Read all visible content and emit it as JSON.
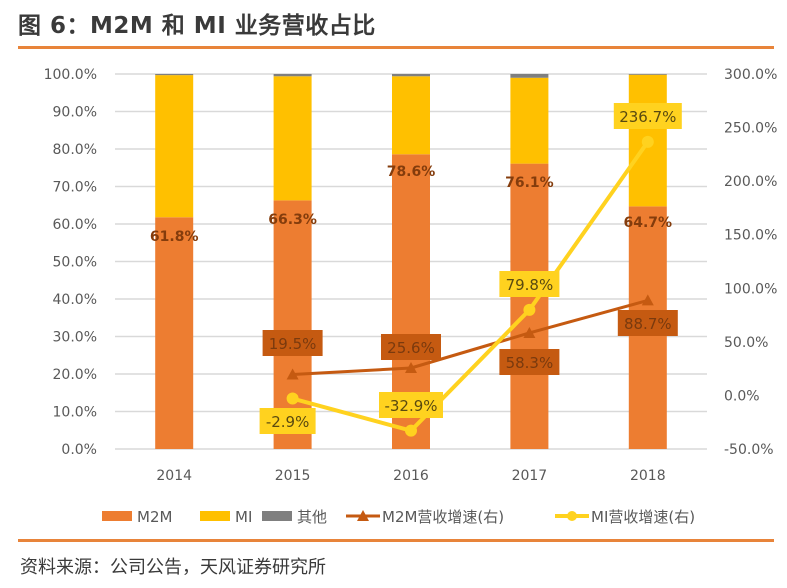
{
  "figure": {
    "title": "图 6：M2M 和 MI 业务营收占比",
    "source": "资料来源：公司公告，天风证券研究所"
  },
  "colors": {
    "m2m": "#ed7d31",
    "mi": "#ffc000",
    "other": "#7f7f7f",
    "m2m_growth": "#c55a11",
    "mi_growth": "#ffd21f",
    "m2m_bar_label": "#843c0c",
    "grid": "#d9d9d9",
    "rule": "#e8843a"
  },
  "chart_data": {
    "type": "bar",
    "subtype": "stacked-bar-with-lines-dual-axis",
    "title": "M2M 和 MI 业务营收占比",
    "categories": [
      "2014",
      "2015",
      "2016",
      "2017",
      "2018"
    ],
    "series": [
      {
        "name": "M2M",
        "kind": "bar",
        "axis": "left",
        "values": [
          61.8,
          66.3,
          78.6,
          76.1,
          64.7
        ],
        "labels": [
          "61.8%",
          "66.3%",
          "78.6%",
          "76.1%",
          "64.7%"
        ]
      },
      {
        "name": "MI",
        "kind": "bar",
        "axis": "left",
        "values": [
          37.9,
          33.1,
          20.8,
          22.9,
          35.1
        ]
      },
      {
        "name": "其他",
        "kind": "bar",
        "axis": "left",
        "values": [
          0.3,
          0.6,
          0.6,
          1.0,
          0.2
        ]
      },
      {
        "name": "M2M营收增速(右)",
        "kind": "line",
        "marker": "triangle",
        "axis": "right",
        "values": [
          null,
          19.5,
          25.6,
          58.3,
          88.7
        ],
        "labels": [
          null,
          "19.5%",
          "25.6%",
          "58.3%",
          "88.7%"
        ]
      },
      {
        "name": "MI营收增速(右)",
        "kind": "line",
        "marker": "circle",
        "axis": "right",
        "values": [
          null,
          -2.9,
          -32.9,
          79.8,
          236.7
        ],
        "labels": [
          null,
          "-2.9%",
          "-32.9%",
          "79.8%",
          "236.7%"
        ]
      }
    ],
    "left_axis": {
      "ylim": [
        0,
        100
      ],
      "ticks": [
        "0.0%",
        "10.0%",
        "20.0%",
        "30.0%",
        "40.0%",
        "50.0%",
        "60.0%",
        "70.0%",
        "80.0%",
        "90.0%",
        "100.0%"
      ],
      "tick_values": [
        0,
        10,
        20,
        30,
        40,
        50,
        60,
        70,
        80,
        90,
        100
      ]
    },
    "right_axis": {
      "ylim": [
        -50,
        300
      ],
      "ticks": [
        "-50.0%",
        "0.0%",
        "50.0%",
        "100.0%",
        "150.0%",
        "200.0%",
        "250.0%",
        "300.0%"
      ],
      "tick_values": [
        -50,
        0,
        50,
        100,
        150,
        200,
        250,
        300
      ]
    },
    "grid": true,
    "legend": {
      "placement": "bottom",
      "items": [
        {
          "label": "M2M",
          "symbol": "bar"
        },
        {
          "label": "MI",
          "symbol": "bar"
        },
        {
          "label": "其他",
          "symbol": "bar"
        },
        {
          "label": "M2M营收增速(右)",
          "symbol": "line-triangle"
        },
        {
          "label": "MI营收增速(右)",
          "symbol": "line-circle"
        }
      ]
    }
  }
}
